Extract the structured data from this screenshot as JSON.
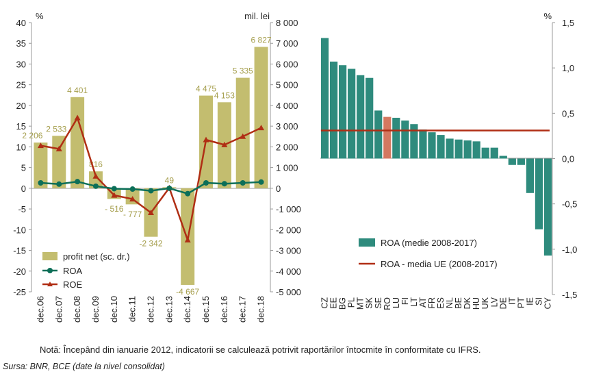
{
  "colors": {
    "profit_bar": "#c3bd6f",
    "profit_label": "#a59e4c",
    "roa_line": "#0c6f58",
    "roe_line": "#b02e14",
    "roa_bar": "#2e8b7d",
    "ro_bar": "#d47860",
    "eu_avg_line": "#b02e14",
    "axis": "#999999",
    "text": "#222222"
  },
  "note": "Notă: Începând din ianuarie 2012, indicatorii se calculează potrivit raportărilor întocmite în conformitate cu IFRS.",
  "source": "Sursa: BNR, BCE (date la nivel consolidat)",
  "chart_data": [
    {
      "type": "bar+line",
      "left_unit": "%",
      "right_unit": "mil. lei",
      "categories": [
        "dec.06",
        "dec.07",
        "dec.08",
        "dec.09",
        "dec.10",
        "dec.11",
        "dec.12",
        "dec.13",
        "dec.14",
        "dec.15",
        "dec.16",
        "dec.17",
        "dec.18"
      ],
      "left_axis": {
        "range": [
          -25,
          40
        ],
        "ticks": [
          "40",
          "35",
          "30",
          "25",
          "20",
          "15",
          "10",
          "5",
          "0",
          "-5",
          "-10",
          "-15",
          "-20",
          "-25"
        ]
      },
      "right_axis": {
        "range": [
          -5000,
          8000
        ],
        "ticks": [
          "8 000",
          "7 000",
          "6 000",
          "5 000",
          "4 000",
          "3 000",
          "2 000",
          "1 000",
          "0",
          "-1 000",
          "-2 000",
          "-3 000",
          "-4 000",
          "-5 000"
        ]
      },
      "profit_values": [
        2206,
        2533,
        4401,
        816,
        -516,
        -777,
        -2342,
        49,
        -4667,
        4475,
        4153,
        5335,
        6827
      ],
      "profit_labels": [
        "2 206",
        "2 533",
        "4 401",
        "816",
        "- 516",
        "- 777",
        "-2 342",
        "49",
        "-4 667",
        "4 475",
        "4 153",
        "5 335",
        "6 827"
      ],
      "series": [
        {
          "name": "ROA",
          "values": [
            1.3,
            1.0,
            1.6,
            0.5,
            -0.1,
            -0.2,
            -0.6,
            0.0,
            -1.3,
            1.3,
            1.1,
            1.3,
            1.5
          ]
        },
        {
          "name": "ROE",
          "values": [
            10.3,
            9.5,
            17.0,
            2.9,
            -1.7,
            -2.6,
            -5.9,
            0.1,
            -12.5,
            11.7,
            10.5,
            12.5,
            14.6
          ]
        }
      ],
      "legend": [
        "profit net (sc. dr.)",
        "ROA",
        "ROE"
      ],
      "legend_position": "bottom-left"
    },
    {
      "type": "bar",
      "unit": "%",
      "categories": [
        "CZ",
        "EE",
        "BG",
        "PL",
        "MT",
        "SK",
        "SE",
        "RO",
        "LU",
        "FI",
        "LT",
        "AT",
        "FR",
        "ES",
        "NL",
        "BE",
        "DK",
        "HU",
        "UK",
        "LV",
        "DE",
        "IT",
        "PT",
        "IE",
        "SI",
        "CY"
      ],
      "values": [
        1.33,
        1.07,
        1.03,
        0.99,
        0.92,
        0.89,
        0.53,
        0.46,
        0.45,
        0.42,
        0.38,
        0.32,
        0.29,
        0.26,
        0.22,
        0.21,
        0.2,
        0.19,
        0.12,
        0.12,
        0.03,
        -0.07,
        -0.07,
        -0.38,
        -0.78,
        -1.07
      ],
      "highlight": "RO",
      "eu_average": 0.31,
      "axis": {
        "range": [
          -1.5,
          1.5
        ],
        "ticks": [
          "1,5",
          "1,0",
          "0,5",
          "0,0",
          "-0,5",
          "-1,0",
          "-1,5"
        ]
      },
      "legend": [
        "ROA (medie 2008-2017)",
        "ROA - media UE (2008-2017)"
      ],
      "legend_position": "bottom-left"
    }
  ]
}
